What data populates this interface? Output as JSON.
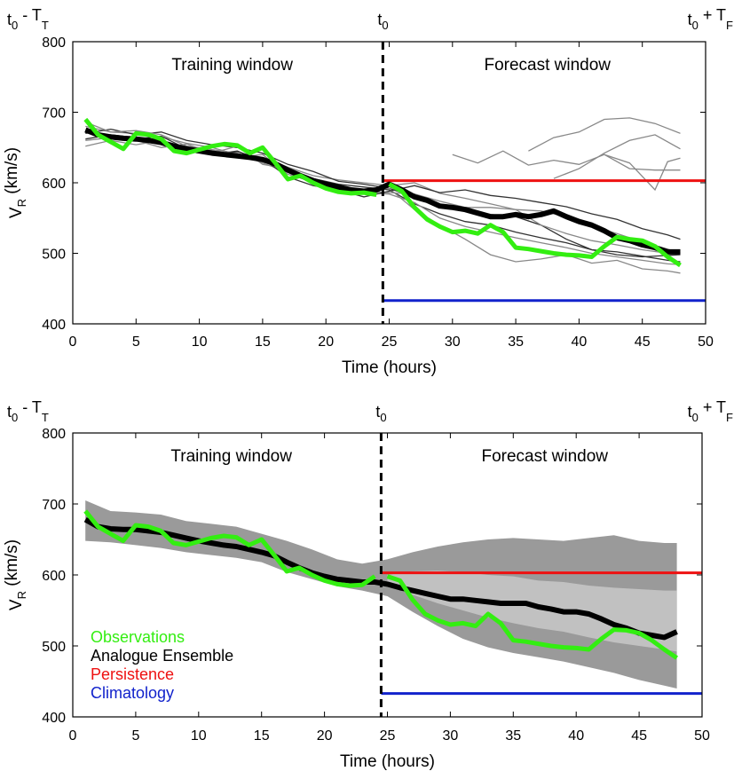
{
  "chart_data": [
    {
      "type": "line",
      "panel": "top",
      "top_labels": {
        "left": {
          "base": "t",
          "sub": "0",
          "rest": " - T",
          "sub2": "T"
        },
        "center": {
          "base": "t",
          "sub": "0"
        },
        "right": {
          "base": "t",
          "sub": "0",
          "rest": " + T",
          "sub2": "F"
        }
      },
      "window_labels": {
        "training": "Training window",
        "forecast": "Forecast window"
      },
      "xlabel": "Time (hours)",
      "ylabel": {
        "base": "V",
        "sub": "R",
        "rest": " (km/s)"
      },
      "xlim": [
        0,
        50
      ],
      "ylim": [
        400,
        800
      ],
      "xticks": [
        0,
        5,
        10,
        15,
        20,
        25,
        30,
        35,
        40,
        45,
        50
      ],
      "yticks": [
        400,
        500,
        600,
        700,
        800
      ],
      "t0": 24.5,
      "colors": {
        "observations": "#33ee11",
        "ensemble": "#000000",
        "persistence": "#ee1111",
        "climatology": "#1122cc",
        "members": "#888888"
      },
      "observations": {
        "x": [
          1,
          2,
          3,
          4,
          5,
          6,
          7,
          8,
          9,
          10,
          11,
          12,
          13,
          14,
          15,
          16,
          17,
          18,
          19,
          20,
          21,
          22,
          23,
          24,
          25,
          26,
          27,
          28,
          29,
          30,
          31,
          32,
          33,
          34,
          35,
          36,
          37,
          38,
          39,
          40,
          41,
          42,
          43,
          44,
          45,
          46,
          47,
          48
        ],
        "y": [
          690,
          668,
          658,
          648,
          670,
          668,
          662,
          645,
          642,
          647,
          652,
          655,
          653,
          642,
          650,
          628,
          605,
          610,
          600,
          592,
          587,
          585,
          586,
          583,
          598,
          588,
          565,
          548,
          538,
          530,
          532,
          528,
          540,
          530,
          508,
          506,
          503,
          500,
          498,
          497,
          495,
          510,
          523,
          520,
          518,
          510,
          495,
          483
        ]
      },
      "observations_forecast_start": 25,
      "ensemble_mean": {
        "x": [
          1,
          2,
          3,
          4,
          5,
          6,
          7,
          8,
          9,
          10,
          11,
          12,
          13,
          14,
          15,
          16,
          17,
          18,
          19,
          20,
          21,
          22,
          23,
          24,
          25,
          26,
          27,
          28,
          29,
          30,
          31,
          32,
          33,
          34,
          35,
          36,
          37,
          38,
          39,
          40,
          41,
          42,
          43,
          44,
          45,
          46,
          47,
          48
        ],
        "y": [
          675,
          668,
          665,
          663,
          662,
          660,
          657,
          652,
          648,
          645,
          642,
          640,
          638,
          636,
          633,
          627,
          618,
          610,
          603,
          598,
          594,
          590,
          588,
          590,
          598,
          590,
          580,
          575,
          567,
          565,
          562,
          557,
          552,
          552,
          555,
          552,
          555,
          560,
          552,
          545,
          540,
          532,
          522,
          518,
          512,
          508,
          502,
          502
        ]
      },
      "persistence": {
        "x": [
          24.5,
          50
        ],
        "y": [
          603,
          603
        ]
      },
      "climatology": {
        "x": [
          24.5,
          50
        ],
        "y": [
          433,
          433
        ]
      },
      "members": [
        {
          "x": [
            1,
            3,
            5,
            7,
            9,
            11,
            13,
            15,
            17,
            19,
            21,
            23,
            25,
            27,
            29,
            31,
            33,
            35,
            37,
            39,
            41,
            43,
            45,
            47,
            48
          ],
          "y": [
            662,
            668,
            664,
            658,
            651,
            640,
            645,
            630,
            618,
            606,
            598,
            594,
            590,
            570,
            556,
            545,
            540,
            530,
            522,
            515,
            505,
            498,
            495,
            497,
            498
          ]
        },
        {
          "x": [
            1,
            3,
            5,
            7,
            9,
            11,
            13,
            15,
            17,
            19,
            21,
            23,
            25,
            27,
            29,
            31,
            33,
            35,
            37,
            39,
            41,
            43,
            45,
            47,
            48
          ],
          "y": [
            680,
            672,
            670,
            665,
            656,
            650,
            640,
            636,
            622,
            610,
            604,
            600,
            596,
            600,
            585,
            578,
            570,
            562,
            560,
            552,
            538,
            528,
            516,
            506,
            500
          ]
        },
        {
          "x": [
            1,
            3,
            5,
            7,
            9,
            11,
            13,
            15,
            17,
            19,
            21,
            23,
            25,
            27,
            29,
            31,
            33,
            35,
            37,
            39,
            41,
            43,
            45,
            47,
            48
          ],
          "y": [
            652,
            660,
            654,
            660,
            646,
            646,
            636,
            640,
            612,
            602,
            596,
            586,
            584,
            572,
            550,
            538,
            530,
            522,
            515,
            508,
            500,
            495,
            490,
            485,
            484
          ]
        },
        {
          "x": [
            1,
            3,
            5,
            7,
            9,
            11,
            13,
            15,
            17,
            19,
            21,
            23,
            25,
            27,
            29,
            31,
            33,
            35,
            37,
            39,
            41,
            43,
            45,
            47,
            48
          ],
          "y": [
            670,
            676,
            668,
            672,
            660,
            654,
            650,
            642,
            626,
            616,
            602,
            598,
            592,
            580,
            565,
            560,
            555,
            552,
            540,
            520,
            505,
            502,
            496,
            490,
            488
          ]
        },
        {
          "x": [
            1,
            3,
            5,
            7,
            9,
            11,
            13,
            15,
            17,
            19,
            21,
            23,
            25,
            27,
            29,
            31,
            33,
            35,
            37,
            39,
            41,
            43,
            45,
            47,
            48
          ],
          "y": [
            686,
            672,
            674,
            668,
            652,
            647,
            642,
            628,
            615,
            604,
            592,
            590,
            592,
            562,
            540,
            520,
            498,
            488,
            492,
            498,
            486,
            490,
            478,
            475,
            472
          ]
        },
        {
          "x": [
            1,
            3,
            5,
            7,
            9,
            11,
            13,
            15,
            17,
            19,
            21,
            23,
            25,
            27,
            29,
            31,
            33,
            35,
            37,
            39,
            41,
            43,
            45,
            47,
            48
          ],
          "y": [
            660,
            664,
            660,
            650,
            655,
            642,
            652,
            626,
            620,
            600,
            594,
            588,
            586,
            584,
            574,
            565,
            565,
            562,
            540,
            528,
            518,
            512,
            505,
            500,
            502
          ]
        },
        {
          "x": [
            1,
            3,
            5,
            7,
            9,
            11,
            13,
            15,
            17,
            19,
            21,
            23,
            25,
            27,
            29,
            31,
            33,
            35,
            37,
            39,
            41,
            43,
            45,
            47,
            48
          ],
          "y": [
            674,
            666,
            662,
            666,
            648,
            640,
            644,
            634,
            608,
            596,
            590,
            580,
            588,
            596,
            586,
            590,
            582,
            578,
            572,
            566,
            556,
            548,
            535,
            526,
            520
          ]
        }
      ],
      "members_upper": [
        {
          "x": [
            30,
            32,
            34,
            36,
            38,
            40,
            42,
            44,
            46,
            48
          ],
          "y": [
            640,
            628,
            645,
            625,
            632,
            626,
            640,
            620,
            618,
            618
          ]
        },
        {
          "x": [
            36,
            38,
            40,
            42,
            44,
            46,
            48
          ],
          "y": [
            645,
            664,
            672,
            690,
            692,
            684,
            670
          ]
        },
        {
          "x": [
            38,
            40,
            42,
            44,
            46,
            48
          ],
          "y": [
            606,
            620,
            642,
            660,
            668,
            648
          ]
        },
        {
          "x": [
            42,
            44,
            46,
            47,
            48
          ],
          "y": [
            640,
            628,
            590,
            630,
            635
          ]
        }
      ]
    },
    {
      "type": "area",
      "panel": "bottom",
      "top_labels": {
        "left": {
          "base": "t",
          "sub": "0",
          "rest": " - T",
          "sub2": "T"
        },
        "center": {
          "base": "t",
          "sub": "0"
        },
        "right": {
          "base": "t",
          "sub": "0",
          "rest": " + T",
          "sub2": "F"
        }
      },
      "window_labels": {
        "training": "Training window",
        "forecast": "Forecast window"
      },
      "xlabel": "Time (hours)",
      "ylabel": {
        "base": "V",
        "sub": "R",
        "rest": " (km/s)"
      },
      "xlim": [
        0,
        50
      ],
      "ylim": [
        400,
        800
      ],
      "xticks": [
        0,
        5,
        10,
        15,
        20,
        25,
        30,
        35,
        40,
        45,
        50
      ],
      "yticks": [
        400,
        500,
        600,
        700,
        800
      ],
      "t0": 24.5,
      "legend": {
        "position": "lower-left",
        "entries": [
          {
            "label": "Observations",
            "color": "#33ee11"
          },
          {
            "label": "Analogue Ensemble",
            "color": "#000000"
          },
          {
            "label": "Persistence",
            "color": "#ee1111"
          },
          {
            "label": "Climatology",
            "color": "#1122cc"
          }
        ]
      },
      "spread_outer": {
        "x": [
          1,
          3,
          5,
          7,
          9,
          11,
          13,
          15,
          17,
          19,
          21,
          23,
          25,
          27,
          29,
          31,
          33,
          35,
          37,
          39,
          41,
          43,
          45,
          47,
          48
        ],
        "upper": [
          705,
          690,
          688,
          685,
          676,
          672,
          668,
          658,
          648,
          636,
          622,
          616,
          622,
          632,
          640,
          646,
          650,
          652,
          650,
          648,
          652,
          656,
          648,
          645,
          645
        ],
        "lower": [
          648,
          646,
          642,
          638,
          632,
          628,
          624,
          618,
          604,
          594,
          584,
          578,
          570,
          548,
          528,
          510,
          498,
          490,
          484,
          478,
          470,
          462,
          452,
          444,
          440
        ]
      },
      "spread_inner": {
        "x": [
          25,
          27,
          29,
          31,
          33,
          35,
          37,
          39,
          41,
          43,
          45,
          47,
          48
        ],
        "upper": [
          600,
          605,
          606,
          604,
          600,
          598,
          592,
          590,
          585,
          582,
          580,
          578,
          578
        ],
        "lower": [
          585,
          572,
          560,
          550,
          540,
          532,
          525,
          520,
          512,
          505,
          500,
          495,
          492
        ]
      },
      "observations": {
        "x": [
          1,
          2,
          3,
          4,
          5,
          6,
          7,
          8,
          9,
          10,
          11,
          12,
          13,
          14,
          15,
          16,
          17,
          18,
          19,
          20,
          21,
          22,
          23,
          24,
          25,
          26,
          27,
          28,
          29,
          30,
          31,
          32,
          33,
          34,
          35,
          36,
          37,
          38,
          39,
          40,
          41,
          42,
          43,
          44,
          45,
          46,
          47,
          48
        ],
        "y": [
          690,
          668,
          658,
          648,
          670,
          668,
          662,
          645,
          642,
          647,
          652,
          655,
          653,
          642,
          650,
          628,
          605,
          610,
          600,
          592,
          587,
          585,
          586,
          598,
          598,
          592,
          565,
          545,
          536,
          530,
          532,
          528,
          545,
          532,
          508,
          506,
          503,
          500,
          498,
          497,
          495,
          510,
          523,
          522,
          518,
          508,
          495,
          483
        ]
      },
      "observations_forecast_start": 25,
      "ensemble_mean": {
        "x": [
          1,
          2,
          3,
          4,
          5,
          6,
          7,
          8,
          9,
          10,
          11,
          12,
          13,
          14,
          15,
          16,
          17,
          18,
          19,
          20,
          21,
          22,
          23,
          24,
          25,
          26,
          27,
          28,
          29,
          30,
          31,
          32,
          33,
          34,
          35,
          36,
          37,
          38,
          39,
          40,
          41,
          42,
          43,
          44,
          45,
          46,
          47,
          48
        ],
        "y": [
          678,
          668,
          665,
          664,
          664,
          662,
          660,
          656,
          652,
          648,
          645,
          642,
          640,
          636,
          632,
          627,
          618,
          610,
          603,
          598,
          594,
          592,
          590,
          590,
          587,
          582,
          578,
          574,
          570,
          566,
          566,
          564,
          562,
          560,
          560,
          560,
          555,
          552,
          548,
          548,
          545,
          538,
          530,
          525,
          518,
          515,
          512,
          520
        ]
      },
      "persistence": {
        "x": [
          24.5,
          50
        ],
        "y": [
          603,
          603
        ]
      },
      "climatology": {
        "x": [
          24.5,
          50
        ],
        "y": [
          433,
          433
        ]
      }
    }
  ]
}
